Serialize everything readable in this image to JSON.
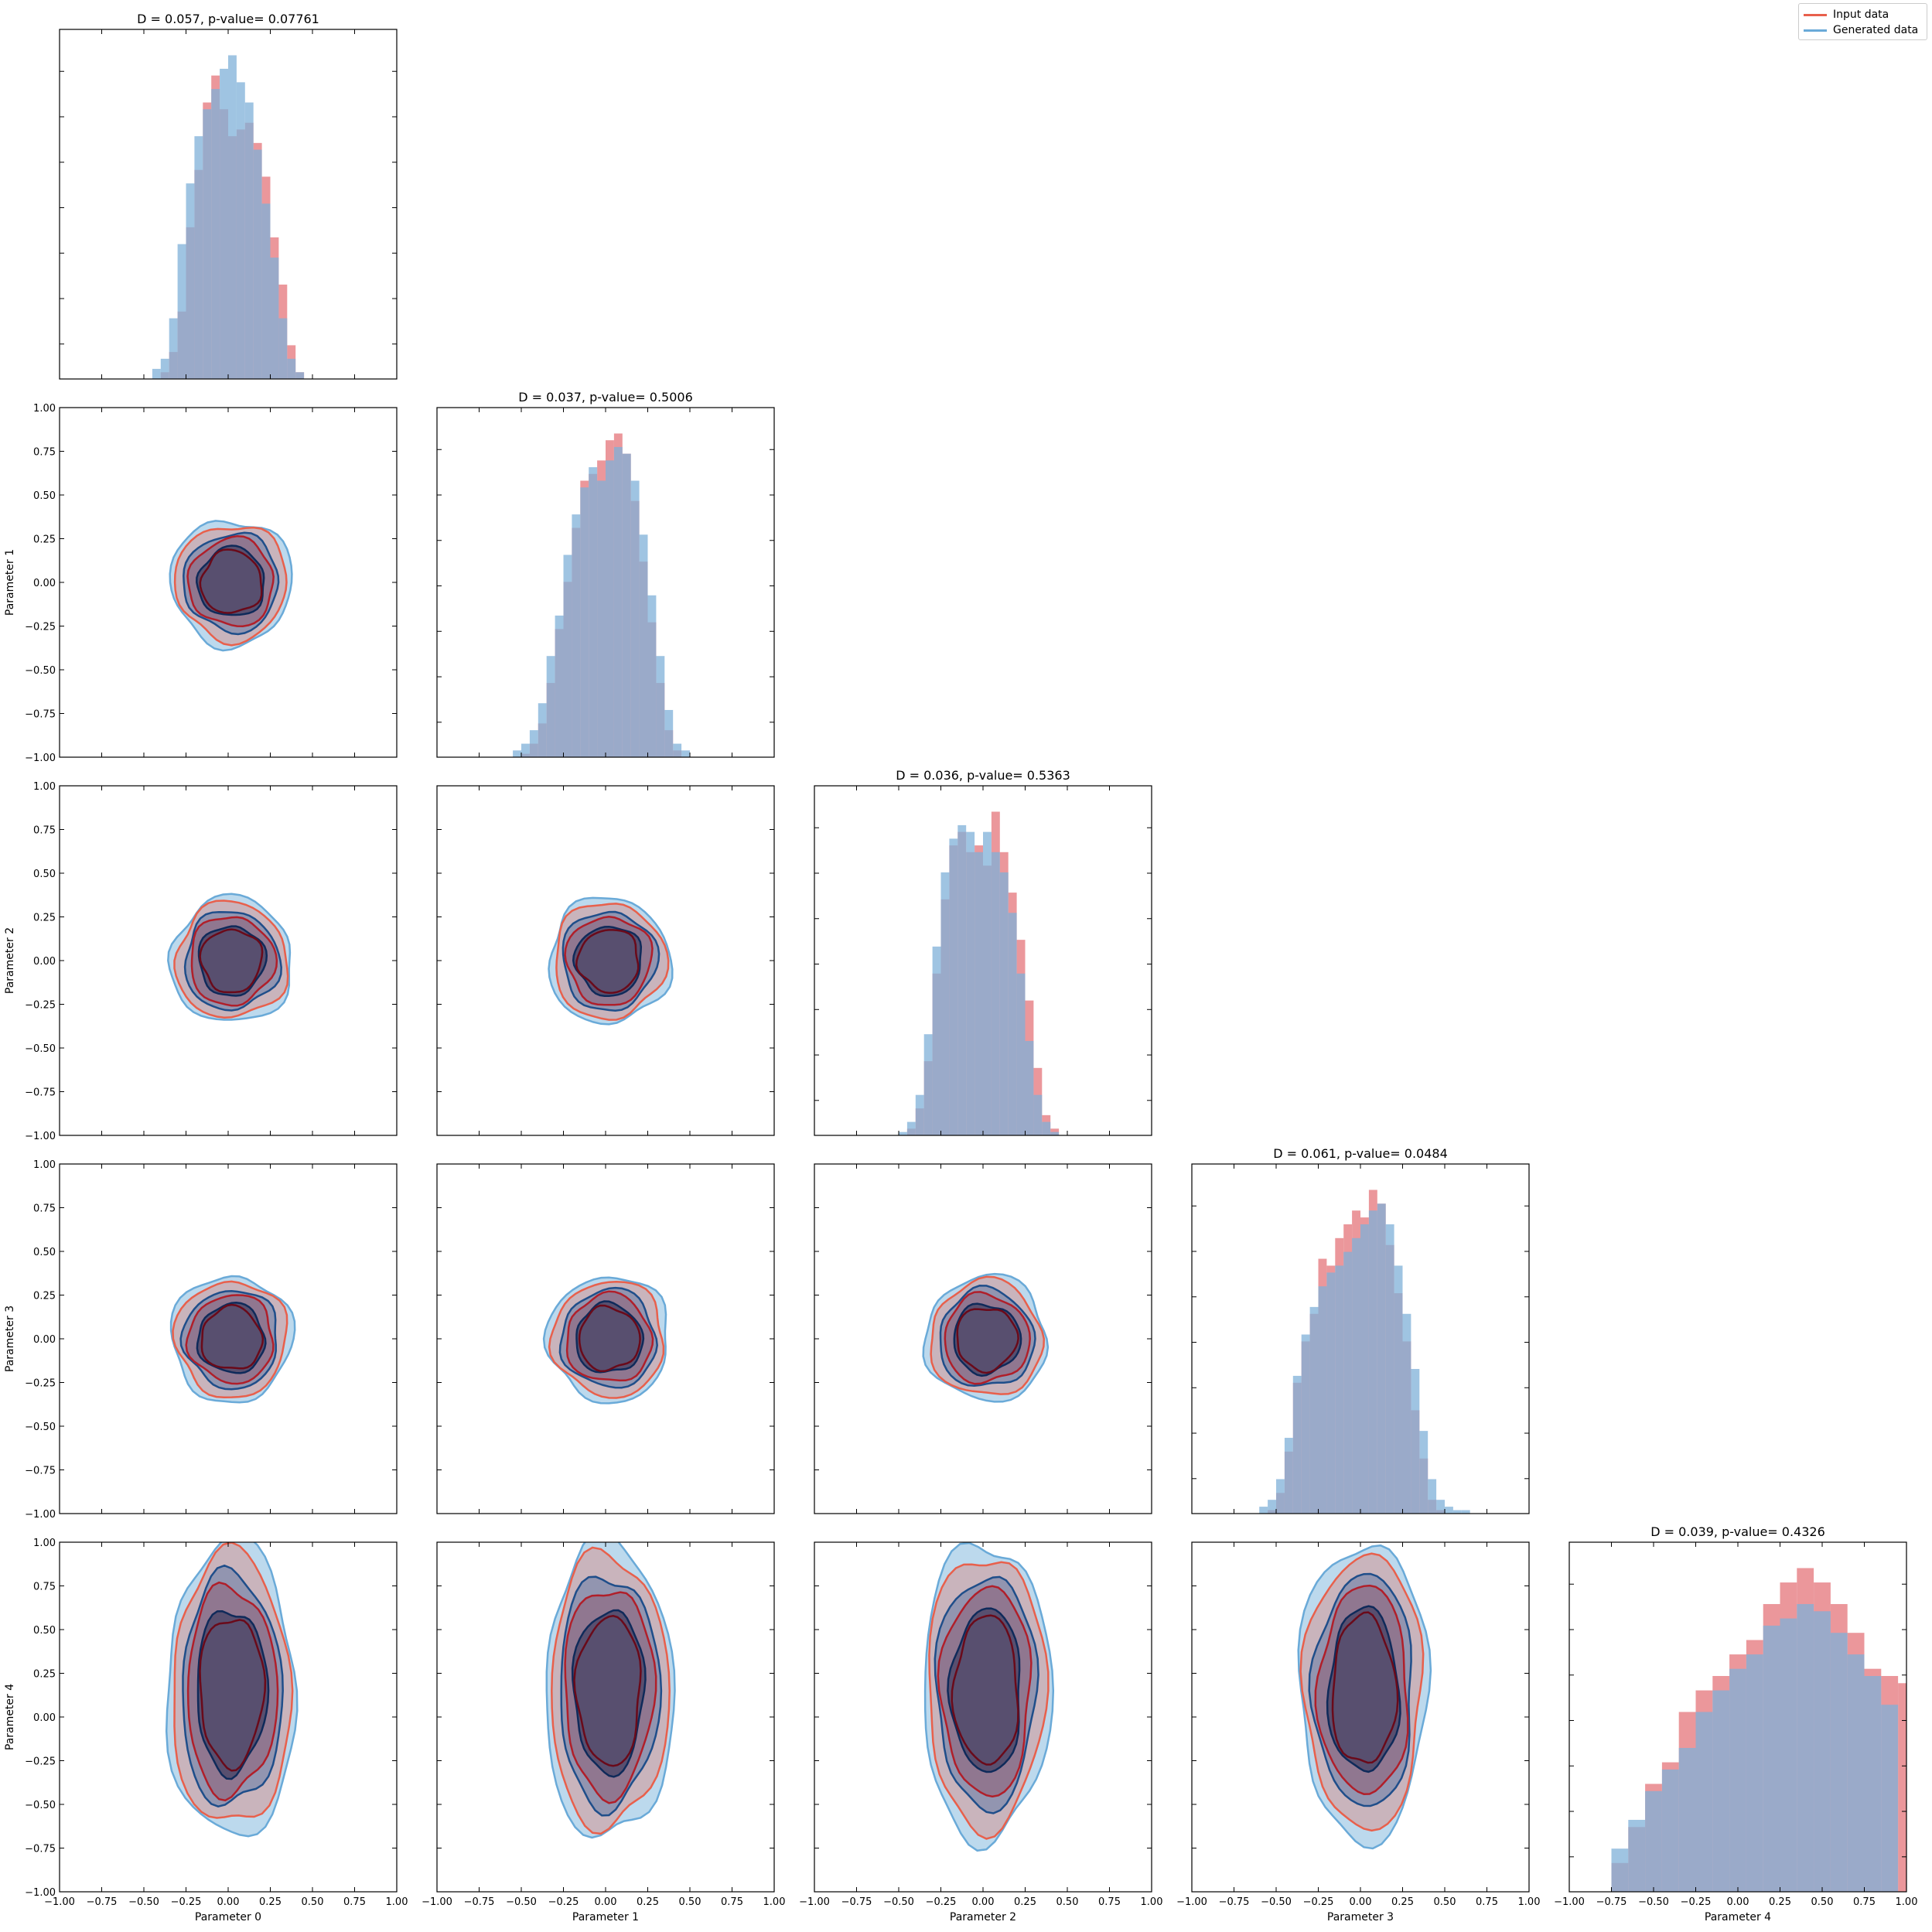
{
  "colors": {
    "input": "#e8604c",
    "input_hist": "#e8858a",
    "generated": "#6aaad8",
    "generated_hist": "#7fb0d8",
    "overlap": "#8a86a0"
  },
  "legend": {
    "input_label": "Input data",
    "generated_label": "Generated data"
  },
  "tick_labels": [
    "−1.00",
    "−0.75",
    "−0.50",
    "−0.25",
    "0.00",
    "0.25",
    "0.50",
    "0.75",
    "1.00"
  ],
  "chart_data": {
    "type": "corner",
    "parameters": [
      "Parameter 0",
      "Parameter 1",
      "Parameter 2",
      "Parameter 3",
      "Parameter 4"
    ],
    "xlim": [
      -1.0,
      1.0
    ],
    "ylim": [
      -1.0,
      1.0
    ],
    "diagonal_titles": [
      "D = 0.057, p-value= 0.07761",
      "D = 0.037, p-value= 0.5006",
      "D = 0.036, p-value= 0.5363",
      "D = 0.061, p-value= 0.0484",
      "D = 0.039, p-value= 0.4326"
    ],
    "x_axis_labels": [
      "Parameter 0",
      "Parameter 1",
      "Parameter 2",
      "Parameter 3",
      "Parameter 4"
    ],
    "y_axis_labels": [
      "Parameter 1",
      "Parameter 2",
      "Parameter 3",
      "Parameter 4"
    ],
    "histograms": [
      {
        "bins": [
          -0.45,
          -0.4,
          -0.35,
          -0.3,
          -0.25,
          -0.2,
          -0.15,
          -0.1,
          -0.05,
          0.0,
          0.05,
          0.1,
          0.15,
          0.2,
          0.25,
          0.3,
          0.35,
          0.4,
          0.45
        ],
        "input": [
          0,
          2,
          8,
          20,
          45,
          62,
          82,
          90,
          80,
          72,
          74,
          76,
          70,
          60,
          42,
          28,
          10,
          2
        ],
        "generated": [
          3,
          6,
          18,
          40,
          58,
          72,
          80,
          86,
          92,
          96,
          88,
          82,
          68,
          52,
          36,
          18,
          6,
          2
        ]
      },
      {
        "bins": [
          -0.55,
          -0.5,
          -0.45,
          -0.4,
          -0.35,
          -0.3,
          -0.25,
          -0.2,
          -0.15,
          -0.1,
          -0.05,
          0.0,
          0.05,
          0.1,
          0.15,
          0.2,
          0.25,
          0.3,
          0.35,
          0.4,
          0.45,
          0.5
        ],
        "input": [
          0,
          1,
          4,
          10,
          22,
          38,
          52,
          68,
          82,
          84,
          88,
          94,
          96,
          90,
          76,
          58,
          40,
          22,
          8,
          2,
          0
        ],
        "generated": [
          2,
          4,
          8,
          16,
          30,
          42,
          60,
          72,
          80,
          86,
          82,
          88,
          92,
          90,
          82,
          66,
          48,
          30,
          14,
          4,
          2
        ]
      },
      {
        "bins": [
          -0.5,
          -0.45,
          -0.4,
          -0.35,
          -0.3,
          -0.25,
          -0.2,
          -0.15,
          -0.1,
          -0.05,
          0.0,
          0.05,
          0.1,
          0.15,
          0.2,
          0.25,
          0.3,
          0.35,
          0.4,
          0.45,
          0.5
        ],
        "input": [
          0,
          2,
          8,
          22,
          48,
          70,
          86,
          90,
          84,
          86,
          80,
          96,
          84,
          72,
          58,
          40,
          20,
          6,
          2,
          0
        ],
        "generated": [
          1,
          4,
          12,
          30,
          56,
          78,
          88,
          92,
          90,
          84,
          90,
          84,
          78,
          66,
          48,
          28,
          12,
          4,
          1,
          0
        ]
      },
      {
        "bins": [
          -0.6,
          -0.55,
          -0.5,
          -0.45,
          -0.4,
          -0.35,
          -0.3,
          -0.25,
          -0.2,
          -0.15,
          -0.1,
          -0.05,
          0.0,
          0.05,
          0.1,
          0.15,
          0.2,
          0.25,
          0.3,
          0.35,
          0.4,
          0.45,
          0.5,
          0.55,
          0.6,
          0.65,
          0.7,
          0.75
        ],
        "input": [
          0,
          1,
          6,
          18,
          38,
          50,
          58,
          74,
          72,
          80,
          84,
          88,
          86,
          94,
          90,
          78,
          64,
          50,
          30,
          16,
          4,
          1,
          0,
          0,
          0,
          0,
          0
        ],
        "generated": [
          2,
          4,
          10,
          22,
          40,
          52,
          60,
          66,
          70,
          72,
          76,
          80,
          84,
          88,
          90,
          84,
          72,
          58,
          42,
          24,
          10,
          4,
          2,
          1,
          1,
          0,
          0
        ]
      },
      {
        "bins": [
          -0.75,
          -0.65,
          -0.55,
          -0.45,
          -0.35,
          -0.25,
          -0.15,
          -0.05,
          0.05,
          0.15,
          0.25,
          0.35,
          0.45,
          0.55,
          0.65,
          0.75,
          0.85,
          0.95,
          1.0
        ],
        "input": [
          8,
          18,
          30,
          36,
          50,
          56,
          60,
          66,
          70,
          80,
          86,
          90,
          86,
          80,
          72,
          62,
          60,
          58
        ],
        "generated": [
          12,
          20,
          28,
          34,
          40,
          50,
          56,
          62,
          66,
          74,
          76,
          80,
          78,
          72,
          66,
          60,
          52,
          0
        ]
      }
    ]
  }
}
